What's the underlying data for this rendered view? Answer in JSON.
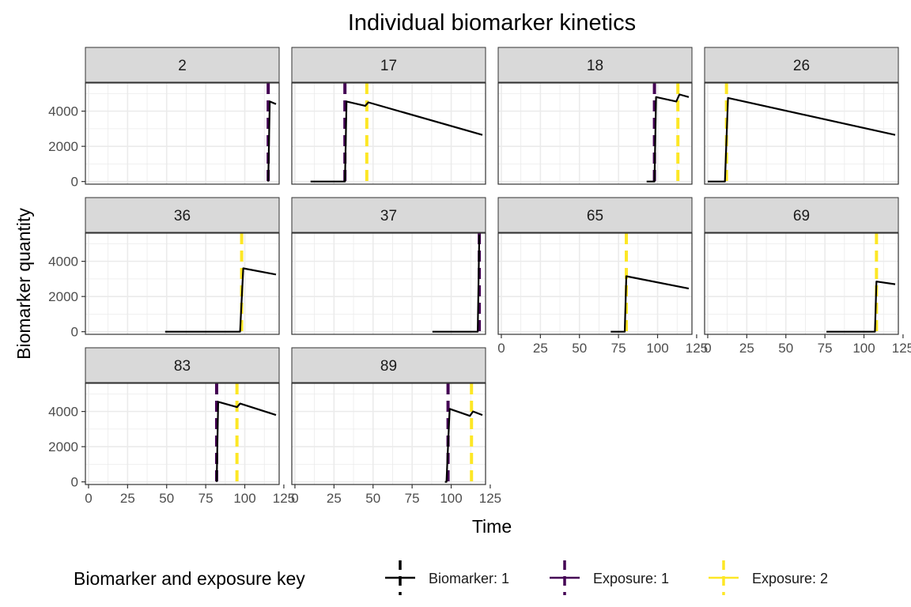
{
  "chart_data": {
    "type": "line",
    "title": "Individual biomarker kinetics",
    "xlabel": "Time",
    "ylabel": "Biomarker quantity",
    "xlim": [
      -2,
      122
    ],
    "ylim": [
      -150,
      5600
    ],
    "x_ticks": [
      0,
      25,
      50,
      75,
      100,
      125
    ],
    "y_ticks": [
      0,
      2000,
      4000
    ],
    "grid": true,
    "facet_layout": {
      "ncol": 4,
      "nrow": 3
    },
    "legend": {
      "title": "Biomarker and exposure key",
      "position": "bottom",
      "entries": [
        {
          "label": "Biomarker: 1",
          "color": "#000000",
          "style": "solid"
        },
        {
          "label": "Exposure: 1",
          "color": "#440154",
          "style": "dashed"
        },
        {
          "label": "Exposure: 2",
          "color": "#FDE725",
          "style": "dashed"
        }
      ]
    },
    "panels": [
      {
        "id": "2",
        "exposures": [
          {
            "type": 1,
            "t": 115
          }
        ],
        "series": [
          [
            115,
            0
          ],
          [
            116,
            4550
          ],
          [
            120,
            4400
          ]
        ]
      },
      {
        "id": "17",
        "exposures": [
          {
            "type": 1,
            "t": 32
          },
          {
            "type": 2,
            "t": 46
          }
        ],
        "series": [
          [
            10,
            0
          ],
          [
            32,
            0
          ],
          [
            33,
            4550
          ],
          [
            45,
            4300
          ],
          [
            47,
            4500
          ],
          [
            120,
            2650
          ]
        ]
      },
      {
        "id": "18",
        "exposures": [
          {
            "type": 1,
            "t": 98
          },
          {
            "type": 2,
            "t": 113
          }
        ],
        "series": [
          [
            93,
            0
          ],
          [
            98,
            0
          ],
          [
            99,
            4800
          ],
          [
            112,
            4550
          ],
          [
            114,
            4950
          ],
          [
            120,
            4800
          ]
        ]
      },
      {
        "id": "26",
        "exposures": [
          {
            "type": 2,
            "t": 12
          }
        ],
        "series": [
          [
            0,
            0
          ],
          [
            11,
            0
          ],
          [
            13,
            4750
          ],
          [
            120,
            2650
          ]
        ]
      },
      {
        "id": "36",
        "exposures": [
          {
            "type": 2,
            "t": 98
          }
        ],
        "series": [
          [
            49,
            0
          ],
          [
            97,
            0
          ],
          [
            99,
            3600
          ],
          [
            120,
            3250
          ]
        ]
      },
      {
        "id": "37",
        "exposures": [
          {
            "type": 1,
            "t": 118
          }
        ],
        "series": [
          [
            88,
            0
          ],
          [
            117,
            0
          ],
          [
            118,
            5500
          ]
        ]
      },
      {
        "id": "65",
        "exposures": [
          {
            "type": 2,
            "t": 80
          }
        ],
        "series": [
          [
            70,
            0
          ],
          [
            79,
            0
          ],
          [
            80,
            3150
          ],
          [
            120,
            2450
          ]
        ]
      },
      {
        "id": "69",
        "exposures": [
          {
            "type": 2,
            "t": 108
          }
        ],
        "series": [
          [
            76,
            0
          ],
          [
            107,
            0
          ],
          [
            108,
            2850
          ],
          [
            120,
            2700
          ]
        ]
      },
      {
        "id": "83",
        "exposures": [
          {
            "type": 1,
            "t": 82
          },
          {
            "type": 2,
            "t": 95
          }
        ],
        "series": [
          [
            82,
            0
          ],
          [
            83,
            4550
          ],
          [
            95,
            4250
          ],
          [
            97,
            4450
          ],
          [
            120,
            3800
          ]
        ]
      },
      {
        "id": "89",
        "exposures": [
          {
            "type": 1,
            "t": 98
          },
          {
            "type": 2,
            "t": 113
          }
        ],
        "series": [
          [
            96,
            0
          ],
          [
            97,
            0
          ],
          [
            99,
            4150
          ],
          [
            112,
            3750
          ],
          [
            114,
            4000
          ],
          [
            120,
            3800
          ]
        ]
      }
    ]
  }
}
